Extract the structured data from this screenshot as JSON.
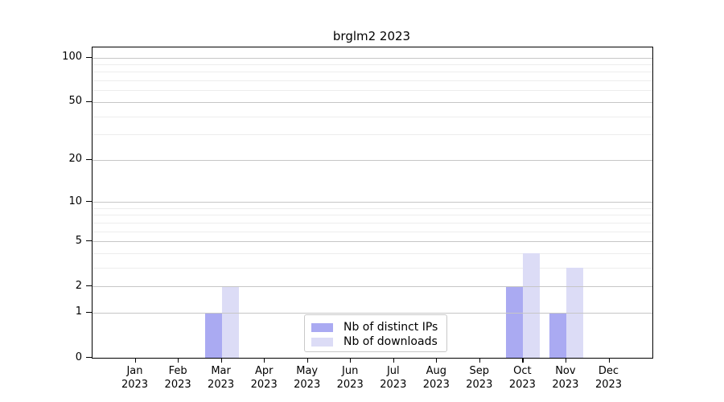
{
  "title": "brglm2 2023",
  "legend": {
    "items": [
      {
        "label": "Nb of distinct IPs",
        "color": "#aaaaf2"
      },
      {
        "label": "Nb of downloads",
        "color": "#dcdcf6"
      }
    ]
  },
  "chart_data": {
    "type": "bar",
    "title": "brglm2 2023",
    "categories": [
      "Jan",
      "Feb",
      "Mar",
      "Apr",
      "May",
      "Jun",
      "Jul",
      "Aug",
      "Sep",
      "Oct",
      "Nov",
      "Dec"
    ],
    "category_year": "2023",
    "series": [
      {
        "name": "Nb of distinct IPs",
        "color": "#aaaaf2",
        "values": [
          0,
          0,
          1,
          0,
          0,
          0,
          0,
          0,
          0,
          2,
          1,
          0
        ]
      },
      {
        "name": "Nb of downloads",
        "color": "#dcdcf6",
        "values": [
          0,
          0,
          2,
          0,
          0,
          0,
          0,
          0,
          0,
          4,
          3,
          0
        ]
      }
    ],
    "xlabel": "",
    "ylabel": "",
    "y_scale": "log1p",
    "y_ticks": [
      0,
      1,
      2,
      5,
      10,
      20,
      50,
      100
    ],
    "y_minor_ticks": [
      3,
      4,
      6,
      7,
      8,
      9,
      30,
      40,
      60,
      70,
      80,
      90
    ],
    "ylim": [
      0,
      117
    ],
    "grid": "horizontal",
    "legend_position": "lower center",
    "colors": {
      "grid_major": "#c6c6c6",
      "grid_minor": "#ededed",
      "axis": "#000000",
      "background": "#ffffff"
    }
  }
}
